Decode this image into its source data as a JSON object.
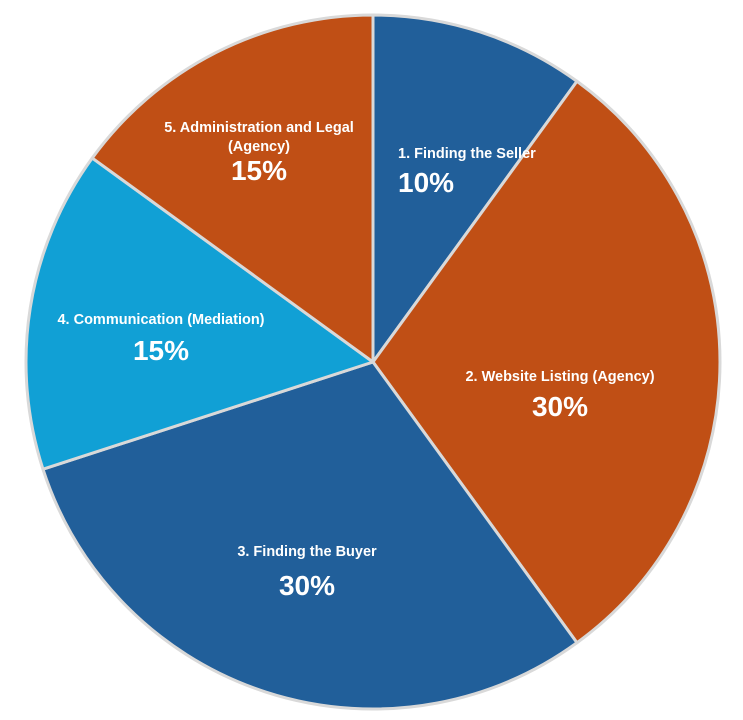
{
  "chart_data": {
    "type": "pie",
    "categories": [
      "1. Finding the Seller",
      "2. Website Listing (Agency)",
      "3. Finding the Buyer",
      "4. Communication (Mediation)",
      "5. Administration and Legal (Agency)"
    ],
    "values": [
      10,
      30,
      30,
      15,
      15
    ],
    "value_labels": [
      "10%",
      "30%",
      "30%",
      "15%",
      "15%"
    ],
    "label_lines": [
      [
        "1. Finding the Seller"
      ],
      [
        "2. Website Listing (Agency)"
      ],
      [
        "3. Finding the Buyer"
      ],
      [
        "4. Communication (Mediation)"
      ],
      [
        "5. Administration and Legal",
        "(Agency)"
      ]
    ],
    "colors": [
      "#215F9A",
      "#C04F15",
      "#215F9A",
      "#11A0D5",
      "#C04F15"
    ],
    "edge_color": "#d9d9d9",
    "label_color": "#ffffff",
    "start_direction": "12 o'clock",
    "direction": "clockwise",
    "title": "",
    "legend": "none"
  }
}
